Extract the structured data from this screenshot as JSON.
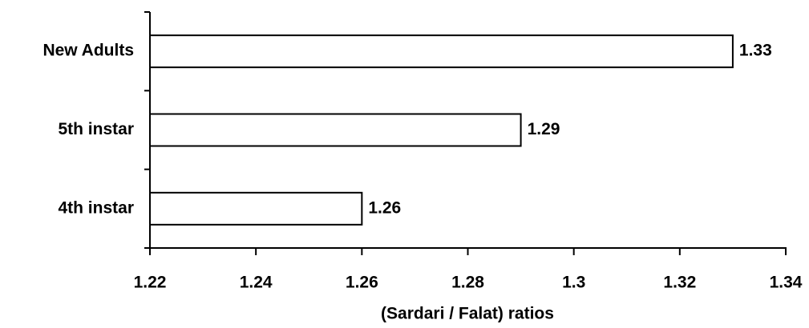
{
  "chart_data": {
    "type": "bar",
    "orientation": "horizontal",
    "categories": [
      "New Adults",
      "5th instar",
      "4th instar"
    ],
    "values": [
      1.33,
      1.29,
      1.26
    ],
    "color": "#ffffff",
    "xlabel": "(Sardari / Falat) ratios",
    "xlim": [
      1.22,
      1.34
    ],
    "xticks": [
      1.22,
      1.24,
      1.26,
      1.28,
      1.3,
      1.32,
      1.34
    ],
    "grid": false
  }
}
